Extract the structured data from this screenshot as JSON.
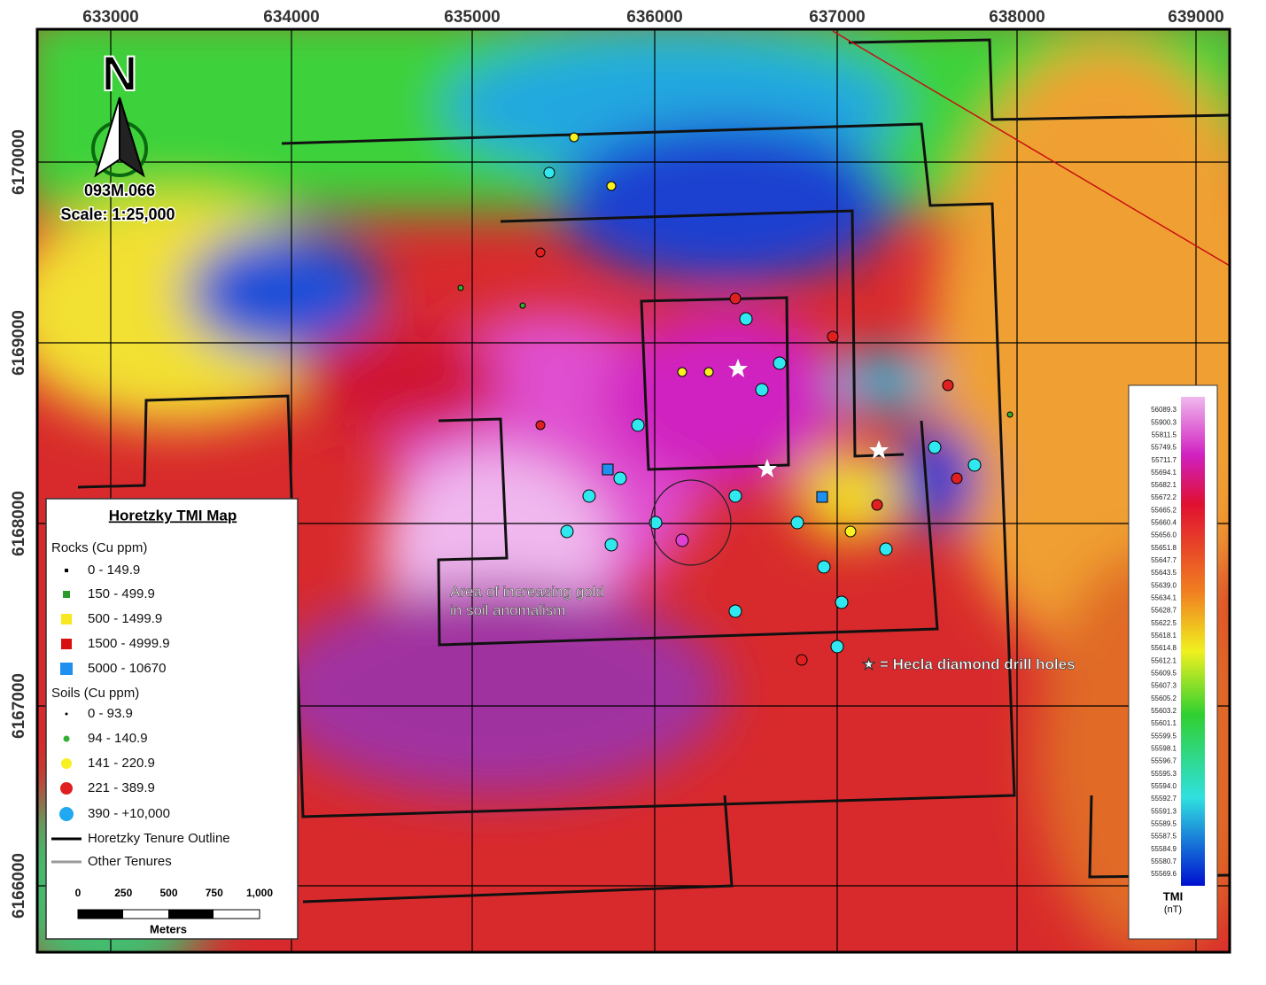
{
  "map": {
    "easting_labels": [
      "633000",
      "634000",
      "635000",
      "636000",
      "637000",
      "638000",
      "639000"
    ],
    "northing_labels": [
      "6170000",
      "6169000",
      "6168000",
      "6167000",
      "6166000"
    ],
    "north_arrow": {
      "letter": "N",
      "sheet": "093M.066",
      "scale": "Scale: 1:25,000"
    },
    "annotations": {
      "gold_line1": "Area of increasing gold",
      "gold_line2": "in soil anomalism",
      "drill_holes": "★ = Hecla diamond drill holes"
    },
    "legend": {
      "title": "Horetzky TMI Map",
      "rocks_heading": "Rocks (Cu ppm)",
      "rocks": [
        "0 - 149.9",
        "150 - 499.9",
        "500 - 1499.9",
        "1500 - 4999.9",
        "5000 - 10670"
      ],
      "soils_heading": "Soils (Cu ppm)",
      "soils": [
        "0 - 93.9",
        "94 - 140.9",
        "141 - 220.9",
        "221 - 389.9",
        "390 - +10,000"
      ],
      "tenure": "Horetzky Tenure Outline",
      "other": "Other Tenures",
      "scale_labels": [
        "0",
        "250",
        "500",
        "750",
        "1,000"
      ],
      "scale_unit": "Meters"
    },
    "colorbar": {
      "labels": [
        "56089.3",
        "55900.3",
        "55811.5",
        "55749.5",
        "55711.7",
        "55694.1",
        "55682.1",
        "55672.2",
        "55665.2",
        "55660.4",
        "55656.0",
        "55651.8",
        "55647.7",
        "55643.5",
        "55639.0",
        "55634.1",
        "55628.7",
        "55622.5",
        "55618.1",
        "55614.8",
        "55612.1",
        "55609.5",
        "55607.3",
        "55605.2",
        "55603.2",
        "55601.1",
        "55599.5",
        "55598.1",
        "55596.7",
        "55595.3",
        "55594.0",
        "55592.7",
        "55591.3",
        "55589.5",
        "55587.5",
        "55584.9",
        "55580.7",
        "55569.6"
      ],
      "title": "TMI",
      "unit": "(nT)"
    }
  }
}
